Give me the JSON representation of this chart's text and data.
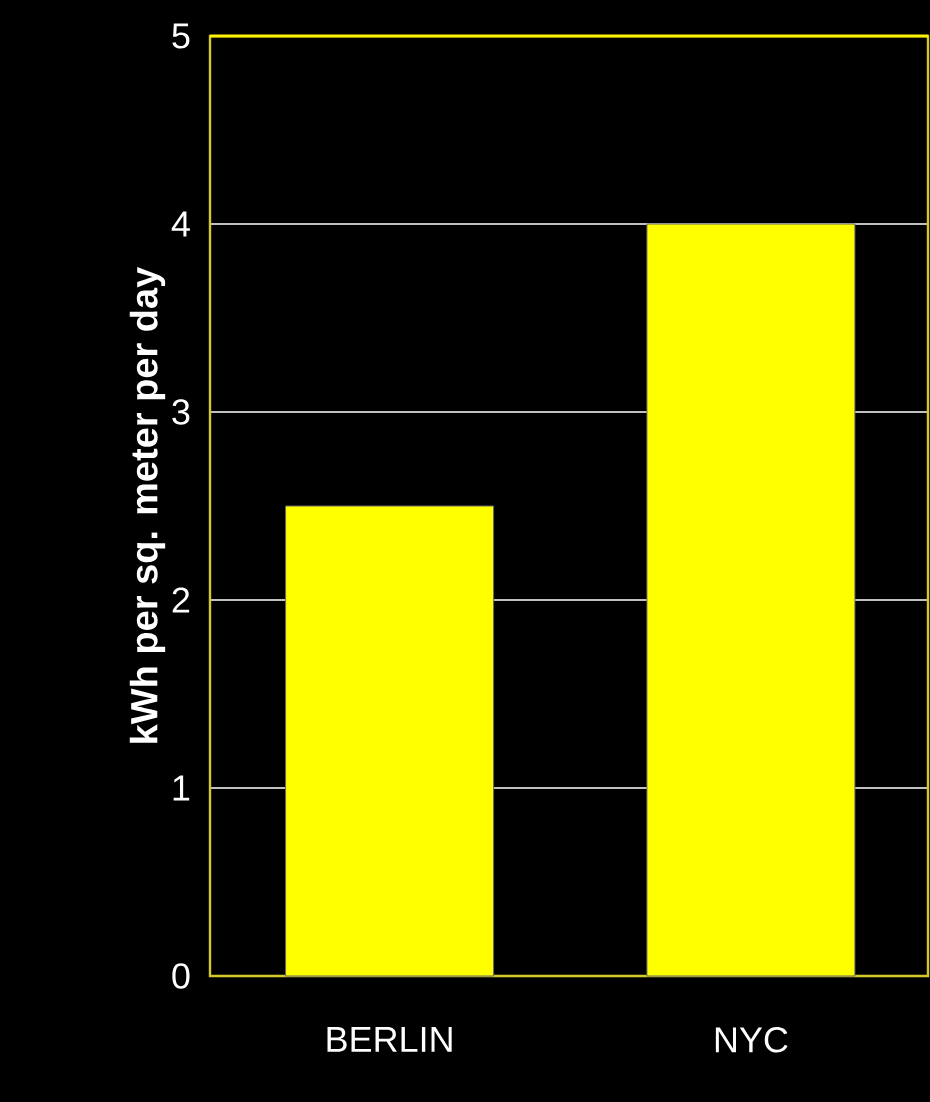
{
  "chart_data": {
    "type": "bar",
    "ylabel": "kWh per sq. meter per day",
    "categories": [
      "BERLIN",
      "NYC"
    ],
    "values": [
      2.5,
      4
    ],
    "color": "#ffff00",
    "ylim": [
      0,
      5
    ],
    "yticks": [
      0,
      1,
      2,
      3,
      4,
      5
    ],
    "grid": "y"
  }
}
